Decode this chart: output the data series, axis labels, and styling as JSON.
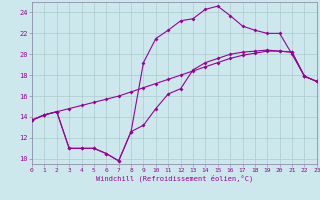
{
  "bg_color": "#cce8ec",
  "line_color": "#990099",
  "grid_color": "#aacccc",
  "xlim": [
    0,
    23
  ],
  "ylim": [
    9.5,
    25.0
  ],
  "xticks": [
    0,
    1,
    2,
    3,
    4,
    5,
    6,
    7,
    8,
    9,
    10,
    11,
    12,
    13,
    14,
    15,
    16,
    17,
    18,
    19,
    20,
    21,
    22,
    23
  ],
  "yticks": [
    10,
    12,
    14,
    16,
    18,
    20,
    22,
    24
  ],
  "xlabel": "Windchill (Refroidissement éolien,°C)",
  "line1_x": [
    0,
    1,
    2,
    3,
    4,
    5,
    6,
    7,
    8,
    9,
    10,
    11,
    12,
    13,
    14,
    15,
    16,
    17,
    18,
    19,
    20,
    21,
    22,
    23
  ],
  "line1_y": [
    13.7,
    14.2,
    14.5,
    14.8,
    15.1,
    15.4,
    15.7,
    16.0,
    16.4,
    16.8,
    17.2,
    17.6,
    18.0,
    18.4,
    18.8,
    19.2,
    19.6,
    19.9,
    20.1,
    20.3,
    20.3,
    20.2,
    17.9,
    17.4
  ],
  "line2_x": [
    0,
    1,
    2,
    3,
    4,
    5,
    6,
    7,
    8,
    9,
    10,
    11,
    12,
    13,
    14,
    15,
    16,
    17,
    18,
    19,
    20,
    21,
    22,
    23
  ],
  "line2_y": [
    13.7,
    14.2,
    14.5,
    11.0,
    11.0,
    11.0,
    10.5,
    9.8,
    12.6,
    19.2,
    21.5,
    22.3,
    23.2,
    23.4,
    24.3,
    24.6,
    23.7,
    22.7,
    22.3,
    22.0,
    22.0,
    20.0,
    17.9,
    17.4
  ],
  "line3_x": [
    0,
    1,
    2,
    3,
    4,
    5,
    6,
    7,
    8,
    9,
    10,
    11,
    12,
    13,
    14,
    15,
    16,
    17,
    18,
    19,
    20,
    21,
    22,
    23
  ],
  "line3_y": [
    13.7,
    14.2,
    14.5,
    11.0,
    11.0,
    11.0,
    10.5,
    9.8,
    12.6,
    13.2,
    14.8,
    16.2,
    16.7,
    18.5,
    19.2,
    19.6,
    20.0,
    20.2,
    20.3,
    20.4,
    20.3,
    20.2,
    17.9,
    17.4
  ]
}
